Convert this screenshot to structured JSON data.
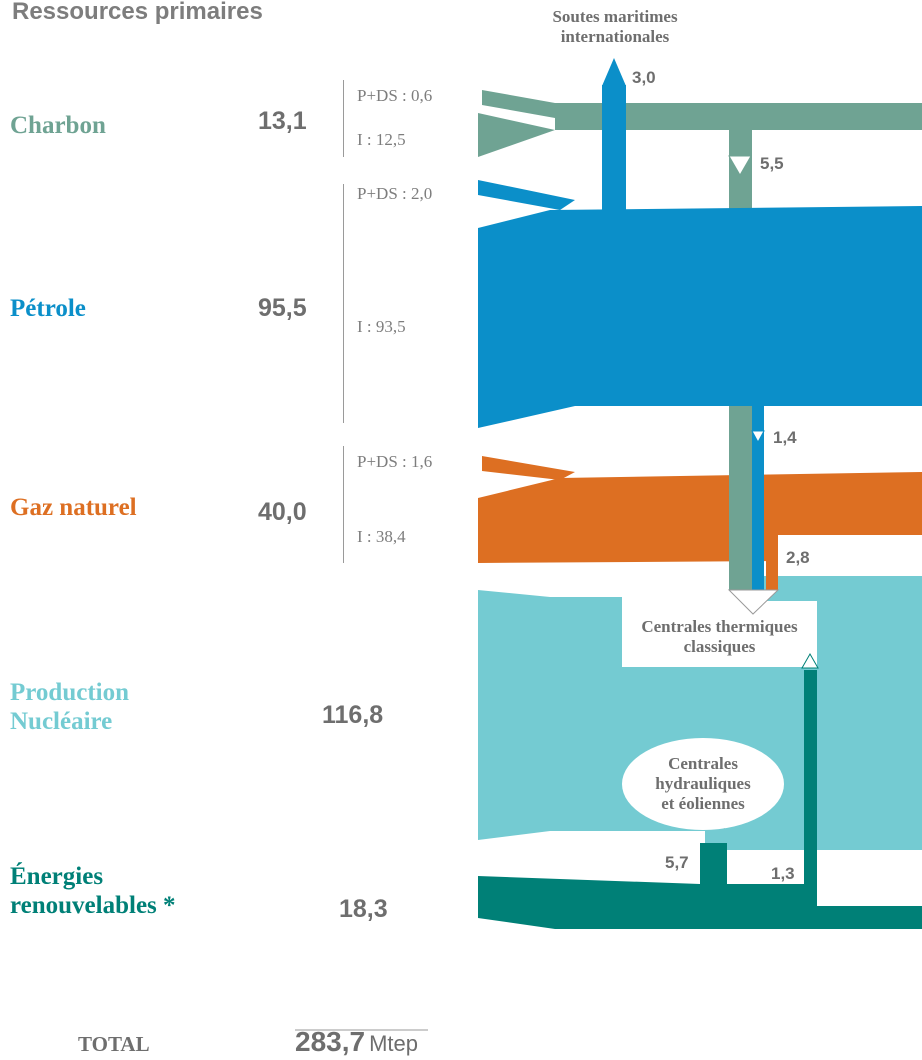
{
  "title": "Ressources primaires",
  "colors": {
    "charbon": "#6fa393",
    "petrole": "#0b8fc9",
    "gaz": "#dd6f22",
    "nucleaire": "#74cbd2",
    "renouvelables": "#008077",
    "value_text": "#6e6e6e"
  },
  "resources": [
    {
      "name": "Charbon",
      "value": "13,1",
      "split_prod": "P+DS : 0,6",
      "split_import": "I : 12,5"
    },
    {
      "name": "Pétrole",
      "value": "95,5",
      "split_prod": "P+DS : 2,0",
      "split_import": "I : 93,5"
    },
    {
      "name": "Gaz naturel",
      "value": "40,0",
      "split_prod": "P+DS : 1,6",
      "split_import": "I : 38,4"
    },
    {
      "name_line1": "Production",
      "name_line2": "Nucléaire",
      "value": "116,8"
    },
    {
      "name_line1": "Énergies",
      "name_line2": "renouvelables *",
      "value": "18,3"
    }
  ],
  "flows": {
    "soutes": "3,0",
    "charbon_thermique": "5,5",
    "petrole_thermique": "1,4",
    "gaz_thermique": "2,8",
    "hydro_eolien": "5,7",
    "renouv_thermique": "1,3"
  },
  "nodes": {
    "soutes_line1": "Soutes maritimes",
    "soutes_line2": "internationales",
    "thermiques_line1": "Centrales thermiques",
    "thermiques_line2": "classiques",
    "hydro_line1": "Centrales",
    "hydro_line2": "hydrauliques",
    "hydro_line3": "et éoliennes"
  },
  "total": {
    "label": "TOTAL",
    "value": "283,7",
    "unit": "Mtep"
  }
}
